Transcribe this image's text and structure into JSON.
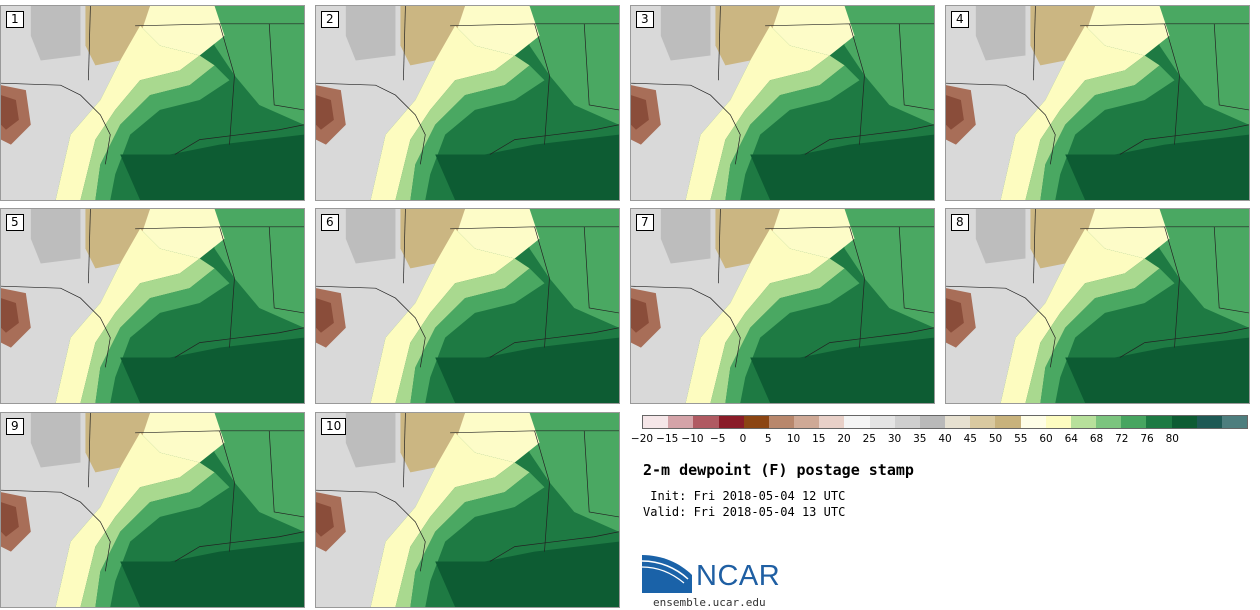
{
  "members": [
    "1",
    "2",
    "3",
    "4",
    "5",
    "6",
    "7",
    "8",
    "9",
    "10"
  ],
  "colorbar": {
    "colors": [
      "#f5e6e8",
      "#d4a3a8",
      "#b05a62",
      "#8a1c28",
      "#8b4513",
      "#b8876c",
      "#cfa996",
      "#e8d0c8",
      "#f4f4f4",
      "#e4e4e4",
      "#cfcfcf",
      "#b9b9b9",
      "#e6e0d0",
      "#d9c9a0",
      "#c8b27c",
      "#fefde6",
      "#fdfcc0",
      "#b7e09b",
      "#7bc47e",
      "#47a560",
      "#1d7a43",
      "#0d5c33",
      "#1e5a55",
      "#4d7e7e"
    ],
    "ticks": [
      "−20",
      "−15",
      "−10",
      "−5",
      "0",
      "5",
      "10",
      "15",
      "20",
      "25",
      "30",
      "35",
      "40",
      "45",
      "50",
      "55",
      "60",
      "64",
      "68",
      "72",
      "76",
      "80"
    ]
  },
  "title": "2-m dewpoint (F) postage stamp",
  "init": " Init: Fri 2018-05-04 12 UTC",
  "valid": "Valid: Fri 2018-05-04 13 UTC",
  "logo": {
    "text": "NCAR",
    "colors": {
      "blue": "#1a62a8",
      "text": "#1f5fa3"
    }
  },
  "url": "ensemble.ucar.edu"
}
